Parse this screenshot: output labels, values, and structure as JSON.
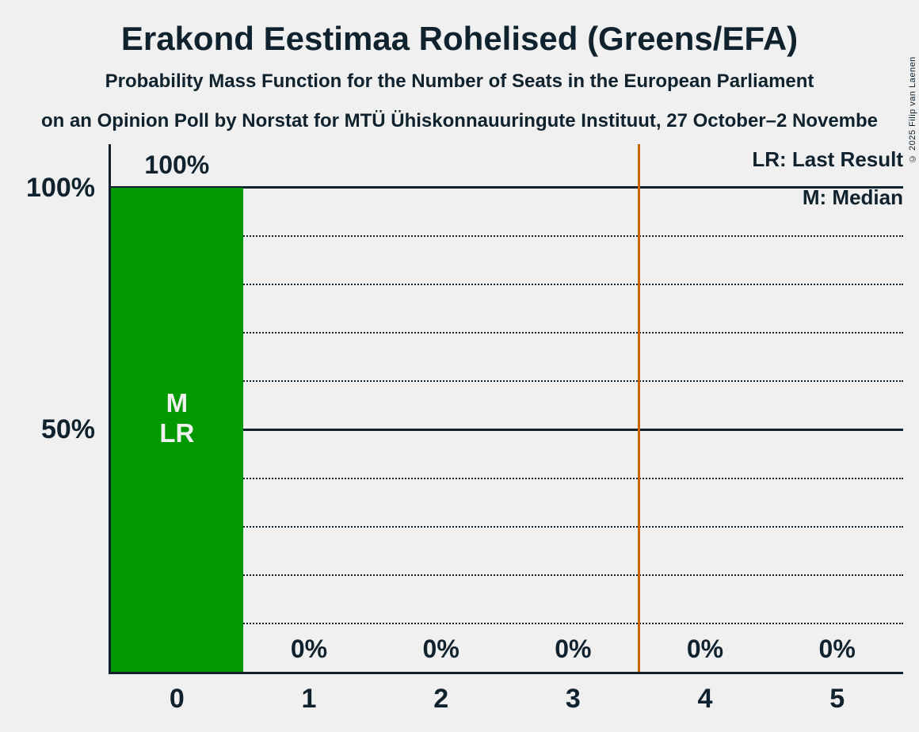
{
  "colors": {
    "background": "#f0f0f0",
    "text": "#0f222e",
    "bar": "#009900",
    "vline": "#cc6600",
    "bar_annotation_text": "#f0f0f0"
  },
  "header": {
    "title": "Erakond Eestimaa Rohelised (Greens/EFA)",
    "subtitle": "Probability Mass Function for the Number of Seats in the European Parliament",
    "poll_line": "on an Opinion Poll by Norstat for MTÜ Ühiskonnauuringute Instituut, 27 October–2 Novembe",
    "copyright": "© 2025 Filip van Laenen"
  },
  "legend": {
    "lr_label": "LR: Last Result",
    "m_label": "M: Median"
  },
  "y_axis": {
    "label_100": "100%",
    "label_50": "50%"
  },
  "chart_data": {
    "type": "bar",
    "title": "Erakond Eestimaa Rohelised (Greens/EFA)",
    "subtitle": "Probability Mass Function for the Number of Seats in the European Parliament",
    "source_line_visible": "on an Opinion Poll by Norstat for MTÜ Ühiskonnauuringute Instituut, 27 October–2 Novembe",
    "categories": [
      "0",
      "1",
      "2",
      "3",
      "4",
      "5"
    ],
    "values": [
      100,
      0,
      0,
      0,
      0,
      0
    ],
    "value_labels": [
      "100%",
      "0%",
      "0%",
      "0%",
      "0%",
      "0%"
    ],
    "ylim": [
      0,
      100
    ],
    "y_ticks": [
      {
        "value": 100,
        "label": "100%"
      },
      {
        "value": 50,
        "label": "50%"
      }
    ],
    "gridlines": {
      "dotted_values": [
        10,
        20,
        30,
        40,
        60,
        70,
        80,
        90
      ],
      "solid_values": [
        50,
        100
      ]
    },
    "bar_color": "#009900",
    "vline": {
      "x": 3.5,
      "color": "#cc6600"
    },
    "inside_bar_annotation": {
      "category": "0",
      "lines": [
        "M",
        "LR"
      ]
    },
    "annotation_key": {
      "LR": "Last Result",
      "M": "Median"
    },
    "legend_position": "top-right",
    "grid": true
  }
}
